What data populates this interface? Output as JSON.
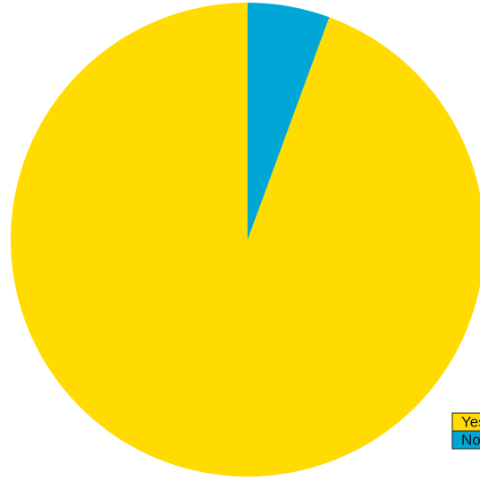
{
  "chart_data": {
    "type": "pie",
    "categories": [
      "Yes",
      "No"
    ],
    "values": [
      94.4,
      5.6
    ],
    "colors": [
      "#ffdb00",
      "#00a6d6"
    ],
    "direction": "counterclockwise",
    "legend": "bottom-right"
  }
}
